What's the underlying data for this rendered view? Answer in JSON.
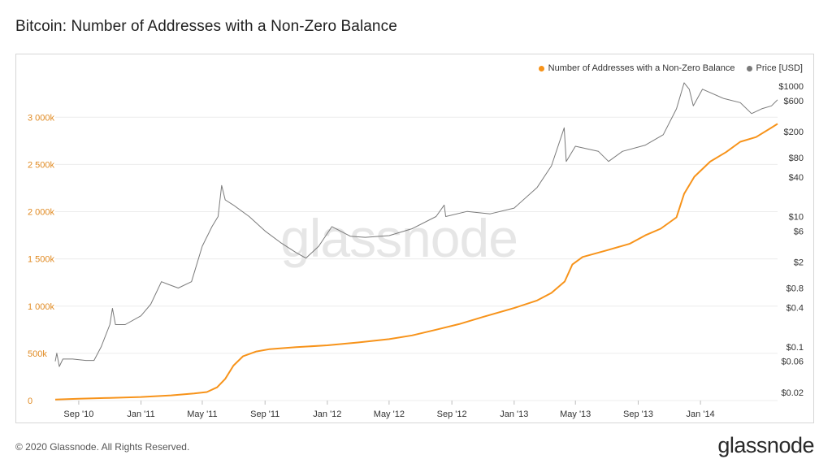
{
  "header": {
    "title": "Bitcoin: Number of Addresses with a Non-Zero Balance"
  },
  "footer": {
    "copyright": "© 2020 Glassnode. All Rights Reserved.",
    "brand": "glassnode"
  },
  "watermark": "glassnode",
  "colors": {
    "addresses": "#f7931a",
    "price": "#7a7a7a",
    "left_axis": "#e08a22",
    "grid": "#ececec"
  },
  "chart_data": {
    "type": "line",
    "title": "Bitcoin: Number of Addresses with a Non-Zero Balance",
    "legend_position": "top-right",
    "legend": [
      "Number of Addresses with a Non-Zero Balance",
      "Price [USD]"
    ],
    "grid": "horizontal",
    "x_tick_labels": [
      "Sep '10",
      "Jan '11",
      "May '11",
      "Sep '11",
      "Jan '12",
      "May '12",
      "Sep '12",
      "Jan '13",
      "May '13",
      "Sep '13",
      "Jan '14"
    ],
    "x_ticks": [
      "2010-09-01",
      "2011-01-01",
      "2011-05-01",
      "2011-09-01",
      "2012-01-01",
      "2012-05-01",
      "2012-09-01",
      "2013-01-01",
      "2013-05-01",
      "2013-09-01",
      "2014-01-01"
    ],
    "x_range": [
      "2010-07-17",
      "2014-06-01"
    ],
    "y_left": {
      "range": [
        0,
        3450000
      ],
      "ticks": [
        0,
        500000,
        1000000,
        1500000,
        2000000,
        2500000,
        3000000
      ],
      "tick_labels": [
        "0",
        "500k",
        "1 000k",
        "1 500k",
        "2 000k",
        "2 500k",
        "3 000k"
      ]
    },
    "y_right": {
      "scale": "log",
      "range": [
        0.015,
        1500
      ],
      "ticks": [
        0.02,
        0.06,
        0.1,
        0.4,
        0.8,
        2,
        6,
        10,
        40,
        80,
        200,
        600,
        1000
      ],
      "tick_labels": [
        "$0.02",
        "$0.06",
        "$0.1",
        "$0.4",
        "$0.8",
        "$2",
        "$6",
        "$10",
        "$40",
        "$80",
        "$200",
        "$600",
        "$1000"
      ]
    },
    "series": [
      {
        "name": "Number of Addresses with a Non-Zero Balance",
        "axis": "left",
        "points": [
          [
            "2010-07-17",
            10000
          ],
          [
            "2010-09-01",
            20000
          ],
          [
            "2010-11-01",
            28000
          ],
          [
            "2011-01-01",
            38000
          ],
          [
            "2011-03-01",
            55000
          ],
          [
            "2011-04-15",
            75000
          ],
          [
            "2011-05-10",
            90000
          ],
          [
            "2011-05-30",
            140000
          ],
          [
            "2011-06-15",
            230000
          ],
          [
            "2011-07-01",
            370000
          ],
          [
            "2011-07-20",
            470000
          ],
          [
            "2011-08-15",
            520000
          ],
          [
            "2011-09-10",
            545000
          ],
          [
            "2011-11-01",
            565000
          ],
          [
            "2012-01-01",
            585000
          ],
          [
            "2012-03-01",
            615000
          ],
          [
            "2012-05-01",
            650000
          ],
          [
            "2012-06-15",
            690000
          ],
          [
            "2012-08-01",
            750000
          ],
          [
            "2012-09-15",
            810000
          ],
          [
            "2012-11-01",
            885000
          ],
          [
            "2013-01-01",
            980000
          ],
          [
            "2013-02-15",
            1060000
          ],
          [
            "2013-03-15",
            1140000
          ],
          [
            "2013-04-10",
            1260000
          ],
          [
            "2013-04-25",
            1440000
          ],
          [
            "2013-05-15",
            1520000
          ],
          [
            "2013-07-01",
            1590000
          ],
          [
            "2013-08-15",
            1660000
          ],
          [
            "2013-09-15",
            1750000
          ],
          [
            "2013-10-15",
            1820000
          ],
          [
            "2013-11-15",
            1940000
          ],
          [
            "2013-11-30",
            2190000
          ],
          [
            "2013-12-20",
            2370000
          ],
          [
            "2014-01-20",
            2530000
          ],
          [
            "2014-02-20",
            2630000
          ],
          [
            "2014-03-20",
            2740000
          ],
          [
            "2014-04-20",
            2790000
          ],
          [
            "2014-05-20",
            2890000
          ],
          [
            "2014-06-01",
            2930000
          ]
        ]
      },
      {
        "name": "Price [USD]",
        "axis": "right",
        "points": [
          [
            "2010-07-17",
            0.06
          ],
          [
            "2010-07-20",
            0.08
          ],
          [
            "2010-07-25",
            0.05
          ],
          [
            "2010-08-01",
            0.065
          ],
          [
            "2010-08-20",
            0.065
          ],
          [
            "2010-09-15",
            0.062
          ],
          [
            "2010-10-01",
            0.062
          ],
          [
            "2010-10-15",
            0.1
          ],
          [
            "2010-11-01",
            0.22
          ],
          [
            "2010-11-06",
            0.39
          ],
          [
            "2010-11-12",
            0.22
          ],
          [
            "2010-12-01",
            0.22
          ],
          [
            "2011-01-01",
            0.3
          ],
          [
            "2011-01-20",
            0.45
          ],
          [
            "2011-02-10",
            1.0
          ],
          [
            "2011-02-25",
            0.9
          ],
          [
            "2011-03-15",
            0.8
          ],
          [
            "2011-04-10",
            1.0
          ],
          [
            "2011-05-01",
            3.5
          ],
          [
            "2011-05-20",
            7.0
          ],
          [
            "2011-06-01",
            10.0
          ],
          [
            "2011-06-08",
            30.0
          ],
          [
            "2011-06-15",
            18.0
          ],
          [
            "2011-07-01",
            15.0
          ],
          [
            "2011-08-01",
            10.0
          ],
          [
            "2011-09-01",
            6.0
          ],
          [
            "2011-10-01",
            4.0
          ],
          [
            "2011-11-01",
            2.8
          ],
          [
            "2011-11-20",
            2.3
          ],
          [
            "2011-12-15",
            3.5
          ],
          [
            "2012-01-10",
            7.0
          ],
          [
            "2012-02-15",
            5.0
          ],
          [
            "2012-03-15",
            4.8
          ],
          [
            "2012-05-01",
            5.1
          ],
          [
            "2012-06-15",
            6.5
          ],
          [
            "2012-08-01",
            10.0
          ],
          [
            "2012-08-17",
            15.0
          ],
          [
            "2012-08-20",
            10.0
          ],
          [
            "2012-10-01",
            12.0
          ],
          [
            "2012-11-15",
            11.0
          ],
          [
            "2013-01-01",
            13.5
          ],
          [
            "2013-02-15",
            28.0
          ],
          [
            "2013-03-15",
            60.0
          ],
          [
            "2013-04-09",
            230.0
          ],
          [
            "2013-04-13",
            70.0
          ],
          [
            "2013-05-01",
            120.0
          ],
          [
            "2013-06-15",
            100.0
          ],
          [
            "2013-07-05",
            70.0
          ],
          [
            "2013-08-01",
            100.0
          ],
          [
            "2013-09-15",
            125.0
          ],
          [
            "2013-10-20",
            180.0
          ],
          [
            "2013-11-15",
            450.0
          ],
          [
            "2013-11-30",
            1130.0
          ],
          [
            "2013-12-10",
            900.0
          ],
          [
            "2013-12-18",
            500.0
          ],
          [
            "2014-01-05",
            900.0
          ],
          [
            "2014-02-15",
            650.0
          ],
          [
            "2014-03-20",
            560.0
          ],
          [
            "2014-04-11",
            380.0
          ],
          [
            "2014-05-01",
            450.0
          ],
          [
            "2014-05-20",
            500.0
          ],
          [
            "2014-06-01",
            620.0
          ]
        ]
      }
    ]
  }
}
